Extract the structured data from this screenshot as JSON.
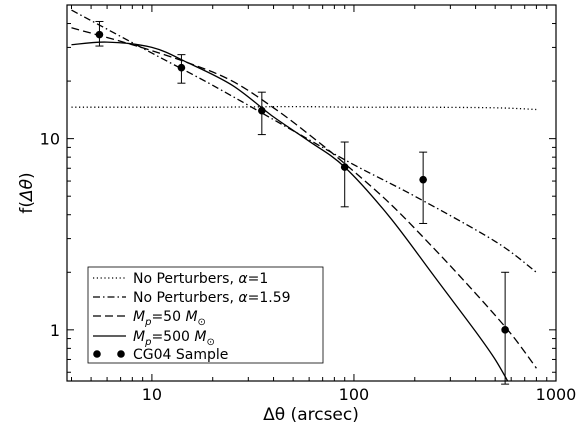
{
  "chart_data": {
    "type": "line",
    "xlabel": "Δθ (arcsec)",
    "ylabel_prefix": "f(",
    "ylabel_var": "Δθ",
    "ylabel_suffix": ")",
    "xscale": "log",
    "yscale": "log",
    "xlim": [
      3.8,
      1000
    ],
    "ylim": [
      0.54,
      50
    ],
    "xticks": [
      {
        "value": 10,
        "label": "10"
      },
      {
        "value": 100,
        "label": "100"
      },
      {
        "value": 1000,
        "label": "1000"
      }
    ],
    "yticks": [
      {
        "value": 1,
        "label": "1"
      },
      {
        "value": 10,
        "label": "10"
      }
    ],
    "legend_position": "bottom-left",
    "series": [
      {
        "name": "No Perturbers, α=1",
        "legend_parts": [
          "No Perturbers, ",
          "α",
          "=1"
        ],
        "style": "dotted",
        "x": [
          4,
          10,
          20,
          50,
          100,
          200,
          500,
          800
        ],
        "y": [
          14.6,
          14.6,
          14.6,
          14.7,
          14.6,
          14.6,
          14.5,
          14.2
        ]
      },
      {
        "name": "No Perturbers, α=1.59",
        "legend_parts": [
          "No Perturbers, ",
          "α",
          "=1.59"
        ],
        "style": "dashdot",
        "x": [
          4,
          10,
          20,
          50,
          100,
          200,
          500,
          800
        ],
        "y": [
          47,
          28,
          19,
          11,
          7.3,
          5.0,
          2.9,
          2.0
        ]
      },
      {
        "name": "Mp=50 M⊙",
        "legend_parts": [
          "M",
          "p",
          "=50 ",
          "M",
          "⊙"
        ],
        "style": "dashed",
        "x": [
          4,
          8,
          15,
          25,
          40,
          60,
          90,
          150,
          250,
          400,
          600,
          800
        ],
        "y": [
          38,
          31,
          25,
          20,
          14.5,
          10.5,
          7.4,
          4.6,
          2.65,
          1.55,
          0.95,
          0.63
        ]
      },
      {
        "name": "Mp=500 M⊙",
        "legend_parts": [
          "M",
          "p",
          "=500 ",
          "M",
          "⊙"
        ],
        "style": "solid",
        "x": [
          4,
          6,
          10,
          15,
          25,
          40,
          60,
          90,
          150,
          250,
          400,
          500,
          600
        ],
        "y": [
          31,
          32,
          30,
          25,
          19,
          13,
          9.7,
          7.1,
          3.9,
          1.9,
          0.98,
          0.7,
          0.5
        ]
      },
      {
        "name": "CG04 Sample",
        "style": "points",
        "points": [
          {
            "x": 5.5,
            "y": 35,
            "ylo": 30.5,
            "yhi": 41
          },
          {
            "x": 14,
            "y": 23.5,
            "ylo": 19.5,
            "yhi": 27.5
          },
          {
            "x": 35,
            "y": 14,
            "ylo": 10.5,
            "yhi": 17.5
          },
          {
            "x": 90,
            "y": 7.1,
            "ylo": 4.4,
            "yhi": 9.6
          },
          {
            "x": 220,
            "y": 6.1,
            "ylo": 3.6,
            "yhi": 8.5
          },
          {
            "x": 560,
            "y": 1.0,
            "ylo": 0.52,
            "yhi": 2.0
          }
        ]
      }
    ]
  }
}
